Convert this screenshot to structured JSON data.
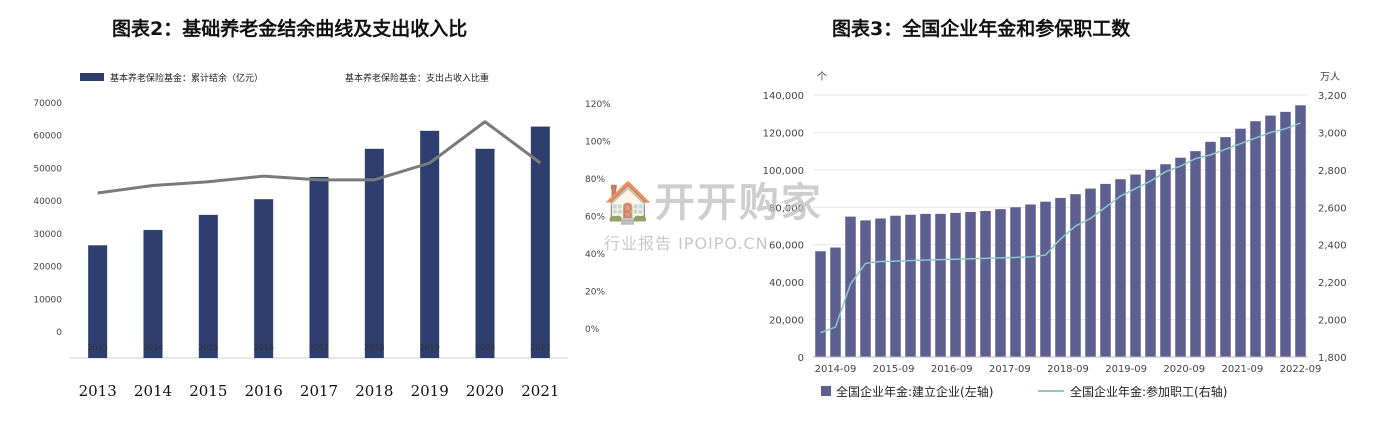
{
  "figures": {
    "left_title": "图表2：基础养老金结余曲线及支出收入比",
    "right_title": "图表3：全国企业年金和参保职工数"
  },
  "watermark": {
    "main": "🏠开开购家",
    "sub": "行业报告 IPOIPO.CN"
  },
  "chart_data": [
    {
      "type": "bar",
      "title": "图表2：基础养老金结余曲线及支出收入比",
      "categories": [
        "2013",
        "2014",
        "2015",
        "2016",
        "2017",
        "2018",
        "2019",
        "2020",
        "2021"
      ],
      "y_ticks": [
        "70000",
        "60000",
        "50000",
        "40000",
        "30000",
        "20000",
        "10000",
        "0"
      ],
      "y2_ticks": [
        "120%",
        "100%",
        "80%",
        "60%",
        "40%",
        "20%",
        "0%"
      ],
      "ylim": [
        0,
        70000
      ],
      "y2lim": [
        0,
        1.2
      ],
      "legend_placement": "top",
      "series": [
        {
          "name": "基本养老保险基金：累计结余（亿元）",
          "kind": "bar",
          "axis": "left",
          "color": "#2e3e6e",
          "values": [
            26500,
            31200,
            35800,
            40600,
            47400,
            56000,
            61500,
            56000,
            62800
          ]
        },
        {
          "name": "基本养老保险基金：支出占收入比重",
          "kind": "line",
          "axis": "right",
          "color": "#7a7a7a",
          "values": [
            0.72,
            0.76,
            0.78,
            0.81,
            0.79,
            0.79,
            0.88,
            1.1,
            0.88
          ]
        }
      ]
    },
    {
      "type": "bar",
      "title": "图表3：全国企业年金和参保职工数",
      "ylabel": "个",
      "y2label": "万人",
      "ylim": [
        0,
        140000
      ],
      "y2lim": [
        1800,
        3200
      ],
      "y_ticks": [
        "140,000",
        "120,000",
        "100,000",
        "80,000",
        "60,000",
        "40,000",
        "20,000",
        "0"
      ],
      "y2_ticks": [
        "3,200",
        "3,000",
        "2,800",
        "2,600",
        "2,400",
        "2,200",
        "2,000",
        "1,800"
      ],
      "x_tick_labels": [
        "2014-09",
        "2015-09",
        "2016-09",
        "2017-09",
        "2018-09",
        "2019-09",
        "2020-09",
        "2021-09",
        "2022-09"
      ],
      "legend_placement": "bottom",
      "series": [
        {
          "name": "全国企业年金:建立企业(左轴)",
          "kind": "bar",
          "axis": "left",
          "color": "#5c5f8f",
          "values": [
            56500,
            58500,
            75000,
            73000,
            74000,
            75500,
            76000,
            76500,
            76500,
            77000,
            77500,
            78000,
            79000,
            80000,
            81500,
            83000,
            85000,
            87000,
            90000,
            92500,
            95000,
            97500,
            100000,
            103000,
            106500,
            110000,
            115000,
            117500,
            122000,
            126000,
            129000,
            131000,
            134500
          ]
        },
        {
          "name": "全国企业年金:参加职工(右轴)",
          "kind": "line",
          "axis": "right",
          "color": "#8cc8c8",
          "values": [
            1930,
            1960,
            2190,
            2300,
            2310,
            2312,
            2315,
            2318,
            2320,
            2322,
            2325,
            2327,
            2330,
            2332,
            2335,
            2345,
            2430,
            2500,
            2540,
            2600,
            2660,
            2700,
            2740,
            2790,
            2820,
            2860,
            2880,
            2910,
            2940,
            2970,
            3000,
            3020,
            3050
          ]
        }
      ]
    }
  ]
}
